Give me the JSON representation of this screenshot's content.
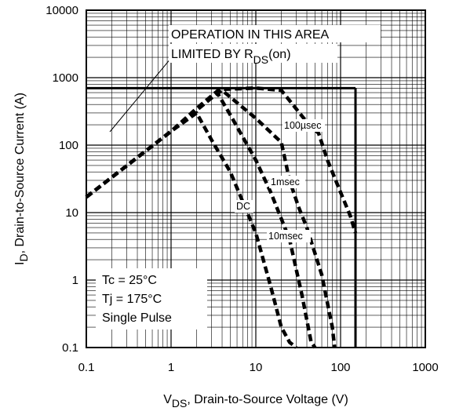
{
  "chart_data": {
    "type": "line",
    "title": "",
    "x_scale": "log",
    "y_scale": "log",
    "xlim": [
      0.1,
      1000
    ],
    "ylim": [
      0.1,
      10000
    ],
    "grid": true,
    "x_ticks": [
      "0.1",
      "1",
      "10",
      "100",
      "1000"
    ],
    "y_ticks": [
      "0.1",
      "1",
      "10",
      "100",
      "1000",
      "10000"
    ],
    "xlabel": {
      "main": "V",
      "sub": "DS",
      "rest": ", Drain-to-Source Voltage (V)"
    },
    "ylabel": {
      "main": "I",
      "sub": "D",
      "rest": ",  Drain-to-Source Current (A)"
    },
    "annotations": {
      "limit_line1": "OPERATION IN THIS AREA",
      "limit_line2_pre": "LIMITED BY R",
      "limit_line2_sub": "DS",
      "limit_line2_post": "(on)",
      "conditions": [
        "Tc = 25°C",
        "Tj = 175°C",
        "Single Pulse"
      ]
    },
    "boundary_lines": {
      "max_current_A": 700,
      "max_voltage_V": 150
    },
    "series": [
      {
        "name": "100µsec",
        "style": "dashed",
        "points": [
          [
            0.1,
            17
          ],
          [
            1,
            160
          ],
          [
            2,
            350
          ],
          [
            3.7,
            670
          ],
          [
            10,
            700
          ],
          [
            20,
            650
          ],
          [
            40,
            220
          ],
          [
            55,
            150
          ],
          [
            70,
            60
          ],
          [
            100,
            20
          ],
          [
            130,
            9
          ],
          [
            150,
            5
          ]
        ]
      },
      {
        "name": "1msec",
        "style": "dashed",
        "points": [
          [
            0.1,
            17
          ],
          [
            1,
            160
          ],
          [
            3,
            500
          ],
          [
            4,
            650
          ],
          [
            10,
            250
          ],
          [
            20,
            110
          ],
          [
            25,
            30
          ],
          [
            32,
            12
          ],
          [
            40,
            6
          ],
          [
            60,
            1.2
          ],
          [
            80,
            0.2
          ],
          [
            85,
            0.1
          ]
        ]
      },
      {
        "name": "10msec",
        "style": "dashed",
        "points": [
          [
            0.1,
            17
          ],
          [
            1,
            160
          ],
          [
            3.5,
            600
          ],
          [
            5,
            280
          ],
          [
            10,
            60
          ],
          [
            15,
            20
          ],
          [
            25,
            4
          ],
          [
            35,
            0.6
          ],
          [
            45,
            0.12
          ],
          [
            50,
            0.1
          ]
        ]
      },
      {
        "name": "DC",
        "style": "dashed",
        "points": [
          [
            0.1,
            17
          ],
          [
            1,
            160
          ],
          [
            2,
            300
          ],
          [
            3,
            120
          ],
          [
            5,
            40
          ],
          [
            10,
            5
          ],
          [
            15,
            0.8
          ],
          [
            20,
            0.2
          ],
          [
            25,
            0.12
          ],
          [
            30,
            0.1
          ]
        ]
      }
    ]
  }
}
